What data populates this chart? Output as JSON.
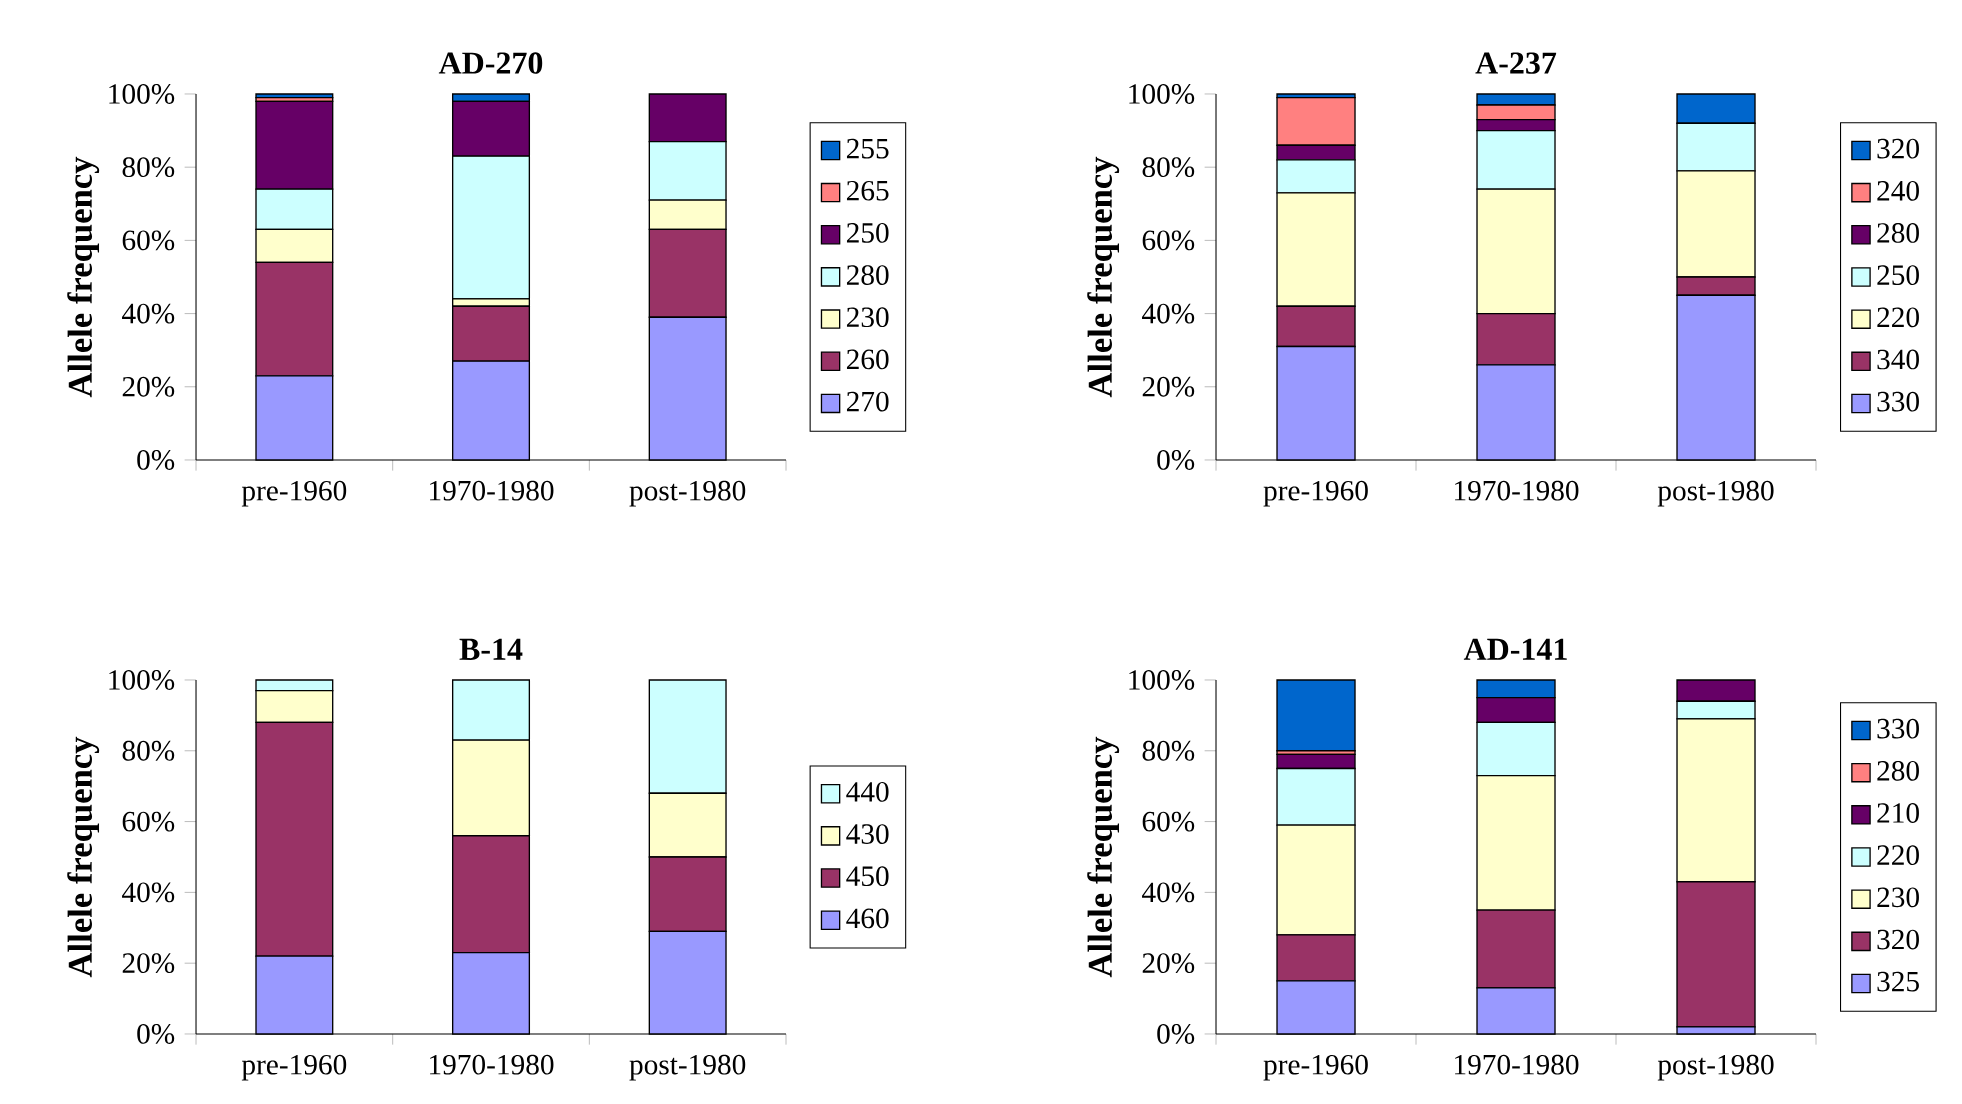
{
  "chart_data": [
    {
      "type": "bar",
      "stacked": true,
      "title": "AD-270",
      "ylabel": "Allele frequency",
      "categories": [
        "pre-1960",
        "1970-1980",
        "post-1980"
      ],
      "ylim": [
        0,
        100
      ],
      "yticks": [
        {
          "value": 0,
          "label": "0%"
        },
        {
          "value": 20,
          "label": "20%"
        },
        {
          "value": 40,
          "label": "40%"
        },
        {
          "value": 60,
          "label": "60%"
        },
        {
          "value": 80,
          "label": "80%"
        },
        {
          "value": 100,
          "label": "100%"
        }
      ],
      "legend": "right",
      "series": [
        {
          "name": "270",
          "color": "#9999ff",
          "values": [
            23,
            27,
            39
          ]
        },
        {
          "name": "260",
          "color": "#993366",
          "values": [
            31,
            15,
            24
          ]
        },
        {
          "name": "230",
          "color": "#ffffcc",
          "values": [
            9,
            2,
            8
          ]
        },
        {
          "name": "280",
          "color": "#ccffff",
          "values": [
            11,
            39,
            16
          ]
        },
        {
          "name": "250",
          "color": "#660066",
          "values": [
            24,
            15,
            13
          ]
        },
        {
          "name": "265",
          "color": "#ff8080",
          "values": [
            1,
            0,
            0
          ]
        },
        {
          "name": "255",
          "color": "#0066cc",
          "values": [
            1,
            2,
            0
          ]
        }
      ]
    },
    {
      "type": "bar",
      "stacked": true,
      "title": "A-237",
      "ylabel": "Allele frequency",
      "categories": [
        "pre-1960",
        "1970-1980",
        "post-1980"
      ],
      "ylim": [
        0,
        100
      ],
      "yticks": [
        {
          "value": 0,
          "label": "0%"
        },
        {
          "value": 20,
          "label": "20%"
        },
        {
          "value": 40,
          "label": "40%"
        },
        {
          "value": 60,
          "label": "60%"
        },
        {
          "value": 80,
          "label": "80%"
        },
        {
          "value": 100,
          "label": "100%"
        }
      ],
      "legend": "right",
      "series": [
        {
          "name": "330",
          "color": "#9999ff",
          "values": [
            31,
            26,
            45
          ]
        },
        {
          "name": "340",
          "color": "#993366",
          "values": [
            11,
            14,
            5
          ]
        },
        {
          "name": "220",
          "color": "#ffffcc",
          "values": [
            31,
            34,
            29
          ]
        },
        {
          "name": "250",
          "color": "#ccffff",
          "values": [
            9,
            16,
            13
          ]
        },
        {
          "name": "280",
          "color": "#660066",
          "values": [
            4,
            3,
            0
          ]
        },
        {
          "name": "240",
          "color": "#ff8080",
          "values": [
            13,
            4,
            0
          ]
        },
        {
          "name": "320",
          "color": "#0066cc",
          "values": [
            1,
            3,
            8
          ]
        }
      ]
    },
    {
      "type": "bar",
      "stacked": true,
      "title": "B-14",
      "ylabel": "Allele frequency",
      "categories": [
        "pre-1960",
        "1970-1980",
        "post-1980"
      ],
      "ylim": [
        0,
        100
      ],
      "yticks": [
        {
          "value": 0,
          "label": "0%"
        },
        {
          "value": 20,
          "label": "20%"
        },
        {
          "value": 40,
          "label": "40%"
        },
        {
          "value": 60,
          "label": "60%"
        },
        {
          "value": 80,
          "label": "80%"
        },
        {
          "value": 100,
          "label": "100%"
        }
      ],
      "legend": "right",
      "series": [
        {
          "name": "460",
          "color": "#9999ff",
          "values": [
            22,
            23,
            29
          ]
        },
        {
          "name": "450",
          "color": "#993366",
          "values": [
            66,
            33,
            21
          ]
        },
        {
          "name": "430",
          "color": "#ffffcc",
          "values": [
            9,
            27,
            18
          ]
        },
        {
          "name": "440",
          "color": "#ccffff",
          "values": [
            3,
            17,
            32
          ]
        }
      ]
    },
    {
      "type": "bar",
      "stacked": true,
      "title": "AD-141",
      "ylabel": "Allele frequency",
      "categories": [
        "pre-1960",
        "1970-1980",
        "post-1980"
      ],
      "ylim": [
        0,
        100
      ],
      "yticks": [
        {
          "value": 0,
          "label": "0%"
        },
        {
          "value": 20,
          "label": "20%"
        },
        {
          "value": 40,
          "label": "40%"
        },
        {
          "value": 60,
          "label": "60%"
        },
        {
          "value": 80,
          "label": "80%"
        },
        {
          "value": 100,
          "label": "100%"
        }
      ],
      "legend": "right",
      "series": [
        {
          "name": "325",
          "color": "#9999ff",
          "values": [
            15,
            13,
            2
          ]
        },
        {
          "name": "320",
          "color": "#993366",
          "values": [
            13,
            22,
            41
          ]
        },
        {
          "name": "230",
          "color": "#ffffcc",
          "values": [
            31,
            38,
            46
          ]
        },
        {
          "name": "220",
          "color": "#ccffff",
          "values": [
            16,
            15,
            5
          ]
        },
        {
          "name": "210",
          "color": "#660066",
          "values": [
            4,
            7,
            6
          ]
        },
        {
          "name": "280",
          "color": "#ff8080",
          "values": [
            1,
            0,
            0
          ]
        },
        {
          "name": "330",
          "color": "#0066cc",
          "values": [
            20,
            5,
            0
          ]
        }
      ]
    }
  ]
}
